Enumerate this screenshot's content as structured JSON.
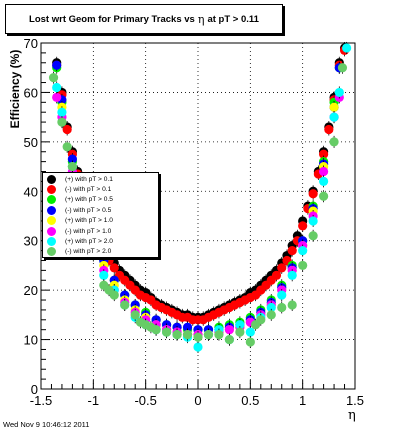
{
  "title": {
    "prefix": "Lost wrt Geom for Primary Tracks vs",
    "symbol": "η",
    "suffix": "at pT > 0.11"
  },
  "footer": "Wed Nov  9 10:46:12 2011",
  "chart_data": {
    "type": "scatter",
    "xlabel": "η",
    "ylabel": "Efficiency (%)",
    "xlim": [
      -1.5,
      1.5
    ],
    "ylim": [
      0,
      70
    ],
    "xticks": [
      "-1.5",
      "-1",
      "-0.5",
      "0",
      "0.5",
      "1",
      "1.5"
    ],
    "yticks": [
      "0",
      "10",
      "20",
      "30",
      "40",
      "50",
      "60",
      "70"
    ],
    "grid": true,
    "legend_position": "middle-left",
    "series": [
      {
        "name": "(+) with pT > 0.1",
        "color": "#000000",
        "x": [
          -1.35,
          -1.3,
          -1.25,
          -1.2,
          -1.15,
          -1.1,
          -1.05,
          -1.0,
          -0.95,
          -0.9,
          -0.85,
          -0.8,
          -0.75,
          -0.7,
          -0.65,
          -0.6,
          -0.55,
          -0.5,
          -0.45,
          -0.4,
          -0.35,
          -0.3,
          -0.25,
          -0.2,
          -0.15,
          -0.1,
          -0.05,
          0.0,
          0.05,
          0.1,
          0.15,
          0.2,
          0.25,
          0.3,
          0.35,
          0.4,
          0.45,
          0.5,
          0.55,
          0.6,
          0.65,
          0.7,
          0.75,
          0.8,
          0.85,
          0.9,
          0.95,
          1.0,
          1.05,
          1.1,
          1.15,
          1.2,
          1.25,
          1.3,
          1.35,
          1.4
        ],
        "y": [
          66,
          60,
          53,
          48,
          44,
          40,
          37,
          34,
          31,
          29,
          27,
          25.5,
          24,
          23,
          22,
          21,
          20,
          19.5,
          18.5,
          17.5,
          17,
          16.5,
          16,
          15.5,
          15,
          15,
          14.5,
          14.5,
          14.5,
          15,
          15.5,
          16,
          16.5,
          17,
          17.5,
          18,
          18.5,
          19.5,
          20,
          21,
          22,
          23,
          24,
          25.5,
          27,
          29,
          31,
          34,
          37,
          40,
          44,
          48,
          53,
          59,
          66,
          69
        ]
      },
      {
        "name": "(-) with pT > 0.1",
        "color": "#ff0000",
        "x": [
          -1.35,
          -1.3,
          -1.25,
          -1.2,
          -1.15,
          -1.1,
          -1.05,
          -1.0,
          -0.95,
          -0.9,
          -0.85,
          -0.8,
          -0.75,
          -0.7,
          -0.65,
          -0.6,
          -0.55,
          -0.5,
          -0.45,
          -0.4,
          -0.35,
          -0.3,
          -0.25,
          -0.2,
          -0.15,
          -0.1,
          -0.05,
          0.0,
          0.05,
          0.1,
          0.15,
          0.2,
          0.25,
          0.3,
          0.35,
          0.4,
          0.45,
          0.5,
          0.55,
          0.6,
          0.65,
          0.7,
          0.75,
          0.8,
          0.85,
          0.9,
          0.95,
          1.0,
          1.05,
          1.1,
          1.15,
          1.2,
          1.25,
          1.3,
          1.35,
          1.4
        ],
        "y": [
          65.5,
          59.5,
          52.5,
          47.5,
          43.5,
          39.5,
          36.5,
          33,
          30,
          28,
          26,
          24.5,
          23,
          22,
          21,
          20,
          19,
          18.5,
          18,
          17,
          16.5,
          16,
          15.5,
          15,
          14.5,
          14.5,
          14,
          14,
          14,
          14.5,
          15,
          15.5,
          16,
          16.5,
          17,
          17.5,
          18,
          18.5,
          19,
          20,
          21,
          22,
          23,
          24.5,
          26,
          28,
          30,
          33,
          36.5,
          39.5,
          43.5,
          47.5,
          52.5,
          58.5,
          65.5,
          68.5
        ]
      },
      {
        "name": "(+) with pT > 0.5",
        "color": "#00ee00",
        "x": [
          -1.35,
          -1.3,
          -1.2,
          -1.1,
          -1.0,
          -0.9,
          -0.8,
          -0.7,
          -0.6,
          -0.5,
          -0.4,
          -0.3,
          -0.2,
          -0.1,
          0.0,
          0.1,
          0.2,
          0.3,
          0.4,
          0.5,
          0.6,
          0.7,
          0.8,
          0.9,
          1.0,
          1.1,
          1.2,
          1.3,
          1.35
        ],
        "y": [
          65,
          58,
          46,
          38,
          31,
          26,
          22,
          19,
          17,
          15.5,
          14,
          13,
          12.5,
          12,
          12,
          12,
          12.5,
          13,
          13.5,
          14.5,
          16,
          18,
          21,
          25,
          30,
          37,
          46,
          58,
          65
        ]
      },
      {
        "name": "(-) with pT > 0.5",
        "color": "#0000ff",
        "x": [
          -1.35,
          -1.3,
          -1.2,
          -1.1,
          -1.0,
          -0.9,
          -0.8,
          -0.7,
          -0.6,
          -0.5,
          -0.4,
          -0.3,
          -0.2,
          -0.1,
          0.0,
          0.1,
          0.2,
          0.3,
          0.4,
          0.5,
          0.6,
          0.7,
          0.8,
          0.9,
          1.0,
          1.1,
          1.2,
          1.3,
          1.35
        ],
        "y": [
          65.5,
          58.5,
          46.5,
          38.5,
          31,
          26,
          22,
          19,
          17,
          15,
          14,
          13,
          12.5,
          12.5,
          12,
          12,
          12,
          12.5,
          13,
          14,
          15.5,
          17.5,
          20.5,
          24.5,
          30,
          36.5,
          45.5,
          57,
          65
        ]
      },
      {
        "name": "(+) with pT > 1.0",
        "color": "#ffff00",
        "x": [
          -1.3,
          -1.2,
          -1.1,
          -1.0,
          -0.9,
          -0.8,
          -0.7,
          -0.6,
          -0.5,
          -0.4,
          -0.3,
          -0.2,
          -0.1,
          0.0,
          0.1,
          0.2,
          0.3,
          0.4,
          0.5,
          0.6,
          0.7,
          0.8,
          0.9,
          1.0,
          1.1,
          1.2,
          1.3
        ],
        "y": [
          57,
          45,
          37,
          30,
          25,
          21,
          18,
          16,
          14.5,
          13,
          12,
          11.5,
          11,
          11,
          11,
          11.5,
          12,
          12.5,
          13.5,
          15,
          17,
          20,
          24,
          29,
          36,
          45,
          57
        ]
      },
      {
        "name": "(-) with pT > 1.0",
        "color": "#ff00ff",
        "x": [
          -1.35,
          -1.3,
          -1.2,
          -1.1,
          -1.0,
          -0.9,
          -0.8,
          -0.7,
          -0.6,
          -0.5,
          -0.4,
          -0.3,
          -0.2,
          -0.1,
          0.0,
          0.1,
          0.2,
          0.3,
          0.4,
          0.5,
          0.6,
          0.7,
          0.8,
          0.9,
          1.0,
          1.1,
          1.2,
          1.3,
          1.35
        ],
        "y": [
          59,
          55,
          44,
          36,
          29,
          24,
          20,
          17.5,
          15.5,
          14,
          13,
          12,
          11.5,
          11,
          11,
          11,
          11.5,
          12,
          12.5,
          13.5,
          15,
          17,
          20,
          24,
          29,
          35,
          44,
          55,
          59
        ]
      },
      {
        "name": "(+) with pT > 2.0",
        "color": "#00ffff",
        "x": [
          -1.35,
          -1.3,
          -1.2,
          -1.1,
          -1.0,
          -0.9,
          -0.8,
          -0.7,
          -0.6,
          -0.5,
          -0.4,
          -0.3,
          -0.2,
          -0.1,
          0.0,
          0.1,
          0.2,
          0.3,
          0.4,
          0.5,
          0.6,
          0.7,
          0.8,
          0.9,
          1.0,
          1.1,
          1.2,
          1.3,
          1.35,
          1.42
        ],
        "y": [
          61,
          56,
          45,
          36,
          28,
          23,
          20,
          17,
          14.5,
          13,
          12,
          11.5,
          11,
          10.5,
          8.5,
          11,
          12,
          10,
          13,
          11.5,
          14.5,
          16.5,
          19,
          23,
          28,
          34,
          42,
          55,
          60,
          69
        ]
      },
      {
        "name": "(-) with pT > 2.0",
        "color": "#66cc66",
        "x": [
          -1.38,
          -1.3,
          -1.25,
          -1.2,
          -1.1,
          -1.0,
          -0.9,
          -0.85,
          -0.8,
          -0.7,
          -0.6,
          -0.55,
          -0.5,
          -0.45,
          -0.4,
          -0.3,
          -0.2,
          -0.1,
          0.0,
          0.1,
          0.2,
          0.3,
          0.4,
          0.5,
          0.55,
          0.6,
          0.7,
          0.8,
          0.9,
          1.0,
          1.1,
          1.2,
          1.3,
          1.38
        ],
        "y": [
          63,
          54,
          49,
          45,
          35,
          27,
          21,
          20,
          19,
          17,
          15,
          13.5,
          13,
          12.5,
          12,
          11.5,
          11,
          11,
          10.5,
          11,
          11,
          10,
          11.5,
          9.5,
          13,
          14,
          15,
          16.5,
          17,
          25,
          31,
          39,
          50,
          65
        ]
      }
    ]
  }
}
